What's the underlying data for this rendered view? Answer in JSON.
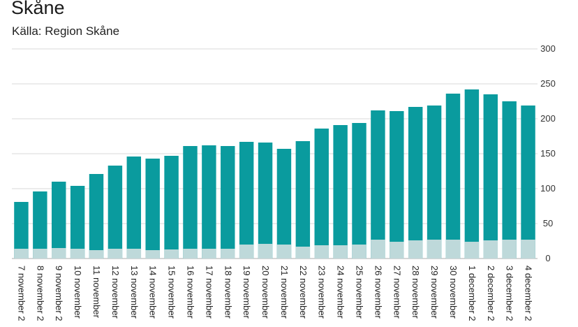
{
  "header": {
    "title": "Skåne",
    "subtitle": "Källa: Region Skåne"
  },
  "colors": {
    "total": "#0a9b9e",
    "lower": "#bed9da",
    "grid": "#e6e6e6",
    "axis": "#bdbdbd"
  },
  "chart_data": {
    "type": "bar",
    "stacked": true,
    "categories": [
      "7 november 2",
      "8 november 2",
      "9 november 2",
      "10 november",
      "11 november",
      "12 november",
      "13 november",
      "14 november",
      "15 november",
      "16 november",
      "17 november",
      "18 november",
      "19 november",
      "20 november",
      "21 november",
      "22 november",
      "23 november",
      "24 november",
      "25 november",
      "26 november",
      "27 november",
      "28 november",
      "29 november",
      "30 november",
      "1 december 2",
      "2 december 2",
      "3 december 2",
      "4 december 2"
    ],
    "totals": [
      81,
      96,
      110,
      104,
      121,
      133,
      146,
      143,
      147,
      161,
      162,
      161,
      167,
      166,
      157,
      168,
      186,
      191,
      194,
      212,
      211,
      217,
      219,
      236,
      242,
      235,
      225,
      219
    ],
    "lower_values": [
      14,
      14,
      15,
      14,
      12,
      14,
      14,
      12,
      13,
      14,
      14,
      14,
      20,
      21,
      20,
      17,
      19,
      19,
      20,
      27,
      24,
      26,
      27,
      27,
      24,
      26,
      27,
      27
    ],
    "y_ticks": [
      "0",
      "50",
      "100",
      "150",
      "200",
      "250",
      "300"
    ],
    "ylim": [
      0,
      300
    ],
    "grid": true,
    "y_axis_position": "right"
  }
}
